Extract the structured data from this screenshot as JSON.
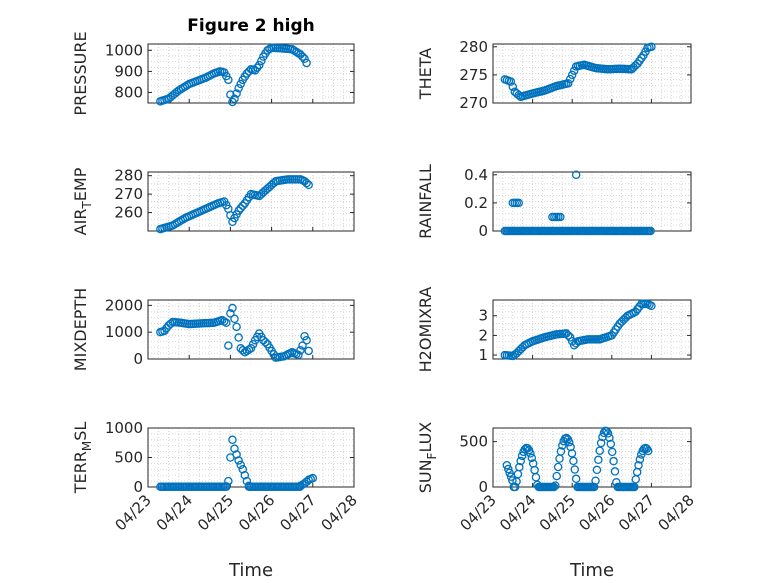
{
  "title": "Figure 2 high",
  "colors": {
    "marker": "#0072BD",
    "axis": "#262626",
    "grid": "#c8c8c8"
  },
  "chart_data": [
    {
      "type": "scatter",
      "ylabel": "PRESSURE",
      "xlabel": "",
      "xlim": [
        0,
        5
      ],
      "ylim": [
        750,
        1030
      ],
      "yticks": [
        800,
        900,
        1000
      ],
      "xticks": [],
      "grid": true,
      "keypoints": [
        [
          0.3,
          758
        ],
        [
          0.5,
          770
        ],
        [
          0.75,
          810
        ],
        [
          1.0,
          840
        ],
        [
          1.2,
          855
        ],
        [
          1.4,
          870
        ],
        [
          1.6,
          890
        ],
        [
          1.75,
          900
        ],
        [
          1.85,
          895
        ],
        [
          1.95,
          860
        ],
        [
          2.0,
          790
        ],
        [
          2.05,
          755
        ],
        [
          2.1,
          770
        ],
        [
          2.2,
          820
        ],
        [
          2.3,
          860
        ],
        [
          2.4,
          890
        ],
        [
          2.5,
          910
        ],
        [
          2.6,
          905
        ],
        [
          2.7,
          930
        ],
        [
          2.8,
          970
        ],
        [
          2.9,
          1000
        ],
        [
          3.0,
          1012
        ],
        [
          3.2,
          1010
        ],
        [
          3.5,
          1005
        ],
        [
          3.7,
          980
        ],
        [
          3.8,
          960
        ],
        [
          3.85,
          940
        ]
      ]
    },
    {
      "type": "scatter",
      "ylabel": "THETA",
      "xlabel": "",
      "xlim": [
        0,
        5
      ],
      "ylim": [
        270,
        280.5
      ],
      "yticks": [
        270,
        275,
        280
      ],
      "xticks": [],
      "grid": true,
      "keypoints": [
        [
          0.3,
          274.2
        ],
        [
          0.45,
          273.8
        ],
        [
          0.55,
          272.0
        ],
        [
          0.7,
          271.1
        ],
        [
          0.85,
          271.4
        ],
        [
          1.0,
          271.7
        ],
        [
          1.3,
          272.2
        ],
        [
          1.6,
          273.0
        ],
        [
          1.9,
          273.5
        ],
        [
          2.0,
          275.0
        ],
        [
          2.1,
          276.5
        ],
        [
          2.3,
          276.8
        ],
        [
          2.6,
          276.2
        ],
        [
          2.9,
          276.0
        ],
        [
          3.2,
          276.1
        ],
        [
          3.5,
          276.0
        ],
        [
          3.65,
          277.0
        ],
        [
          3.8,
          278.5
        ],
        [
          3.9,
          279.8
        ],
        [
          4.0,
          280.0
        ]
      ]
    },
    {
      "type": "scatter",
      "ylabel": "AIR_TEMP",
      "xlabel": "",
      "xlim": [
        0,
        5
      ],
      "ylim": [
        250,
        282
      ],
      "yticks": [
        260,
        270,
        280
      ],
      "xticks": [],
      "grid": true,
      "keypoints": [
        [
          0.3,
          251
        ],
        [
          0.6,
          253
        ],
        [
          0.9,
          257
        ],
        [
          1.2,
          260
        ],
        [
          1.5,
          263
        ],
        [
          1.7,
          265
        ],
        [
          1.85,
          266
        ],
        [
          1.95,
          262
        ],
        [
          2.05,
          255
        ],
        [
          2.1,
          257
        ],
        [
          2.2,
          261
        ],
        [
          2.35,
          265
        ],
        [
          2.5,
          270
        ],
        [
          2.7,
          269
        ],
        [
          2.9,
          273
        ],
        [
          3.1,
          277
        ],
        [
          3.4,
          278
        ],
        [
          3.7,
          278
        ],
        [
          3.8,
          277
        ],
        [
          3.9,
          275
        ]
      ]
    },
    {
      "type": "scatter",
      "ylabel": "RAINFALL",
      "xlabel": "",
      "xlim": [
        0,
        5
      ],
      "ylim": [
        0,
        0.42
      ],
      "yticks": [
        0,
        0.2,
        0.4
      ],
      "xticks": [],
      "grid": true,
      "segments": [
        [
          0.3,
          4.0,
          0
        ]
      ],
      "extra": [
        [
          0.5,
          0.2
        ],
        [
          0.55,
          0.2
        ],
        [
          0.6,
          0.2
        ],
        [
          0.65,
          0.2
        ],
        [
          1.5,
          0.1
        ],
        [
          1.55,
          0.1
        ],
        [
          1.6,
          0.1
        ],
        [
          1.65,
          0.1
        ],
        [
          1.7,
          0.1
        ],
        [
          2.1,
          0.4
        ]
      ]
    },
    {
      "type": "scatter",
      "ylabel": "MIXDEPTH",
      "xlabel": "",
      "xlim": [
        0,
        5
      ],
      "ylim": [
        0,
        2200
      ],
      "yticks": [
        0,
        1000,
        2000
      ],
      "xticks": [],
      "grid": true,
      "keypoints": [
        [
          0.3,
          1000
        ],
        [
          0.4,
          1050
        ],
        [
          0.5,
          1250
        ],
        [
          0.6,
          1380
        ],
        [
          0.8,
          1350
        ],
        [
          1.0,
          1300
        ],
        [
          1.3,
          1330
        ],
        [
          1.6,
          1350
        ],
        [
          1.8,
          1450
        ],
        [
          1.9,
          1350
        ],
        [
          1.95,
          500
        ],
        [
          2.0,
          1700
        ],
        [
          2.05,
          1900
        ],
        [
          2.1,
          1500
        ],
        [
          2.15,
          1200
        ],
        [
          2.25,
          400
        ],
        [
          2.35,
          250
        ],
        [
          2.5,
          400
        ],
        [
          2.6,
          700
        ],
        [
          2.7,
          950
        ],
        [
          2.8,
          700
        ],
        [
          2.9,
          550
        ],
        [
          3.0,
          300
        ],
        [
          3.1,
          50
        ],
        [
          3.3,
          100
        ],
        [
          3.5,
          250
        ],
        [
          3.65,
          150
        ],
        [
          3.75,
          500
        ],
        [
          3.8,
          850
        ],
        [
          3.85,
          700
        ],
        [
          3.9,
          300
        ]
      ]
    },
    {
      "type": "scatter",
      "ylabel": "H2OMIXRA",
      "xlabel": "",
      "xlim": [
        0,
        5
      ],
      "ylim": [
        0.8,
        3.8
      ],
      "yticks": [
        1,
        2,
        3
      ],
      "xticks": [],
      "grid": true,
      "keypoints": [
        [
          0.3,
          1.0
        ],
        [
          0.5,
          0.95
        ],
        [
          0.6,
          1.1
        ],
        [
          0.8,
          1.5
        ],
        [
          1.0,
          1.7
        ],
        [
          1.3,
          1.9
        ],
        [
          1.6,
          2.05
        ],
        [
          1.85,
          2.1
        ],
        [
          1.95,
          1.9
        ],
        [
          2.05,
          1.5
        ],
        [
          2.15,
          1.7
        ],
        [
          2.4,
          1.8
        ],
        [
          2.7,
          1.8
        ],
        [
          3.0,
          2.0
        ],
        [
          3.2,
          2.6
        ],
        [
          3.4,
          3.0
        ],
        [
          3.6,
          3.2
        ],
        [
          3.75,
          3.6
        ],
        [
          3.9,
          3.6
        ],
        [
          4.0,
          3.5
        ]
      ]
    },
    {
      "type": "scatter",
      "ylabel": "TERR_MSL",
      "xlabel": "Time",
      "xlim": [
        0,
        5
      ],
      "ylim": [
        0,
        1000
      ],
      "yticks": [
        0,
        500,
        1000
      ],
      "xticks": [
        "04/23",
        "04/24",
        "04/25",
        "04/26",
        "04/27",
        "04/28"
      ],
      "grid": true,
      "segments": [
        [
          0.3,
          1.9,
          5
        ],
        [
          2.45,
          3.7,
          5
        ]
      ],
      "keypoints": [
        [
          1.9,
          10
        ],
        [
          1.95,
          100
        ],
        [
          2.0,
          500
        ],
        [
          2.05,
          800
        ],
        [
          2.1,
          650
        ],
        [
          2.2,
          450
        ],
        [
          2.3,
          300
        ],
        [
          2.4,
          100
        ],
        [
          2.45,
          20
        ]
      ],
      "extra2": [
        [
          3.7,
          20
        ],
        [
          3.8,
          60
        ],
        [
          3.9,
          120
        ],
        [
          4.0,
          150
        ]
      ]
    },
    {
      "type": "scatter",
      "ylabel": "SUN_FLUX",
      "xlabel": "Time",
      "xlim": [
        0,
        5
      ],
      "ylim": [
        0,
        650
      ],
      "yticks": [
        0,
        500
      ],
      "xticks": [
        "04/23",
        "04/24",
        "04/25",
        "04/26",
        "04/27",
        "04/28"
      ],
      "grid": true,
      "daily": {
        "start": 0.35,
        "end": 3.95,
        "peaks": [
          [
            0.85,
            430
          ],
          [
            1.85,
            540
          ],
          [
            2.85,
            620
          ],
          [
            3.85,
            430
          ]
        ],
        "first_value": 240
      }
    }
  ]
}
